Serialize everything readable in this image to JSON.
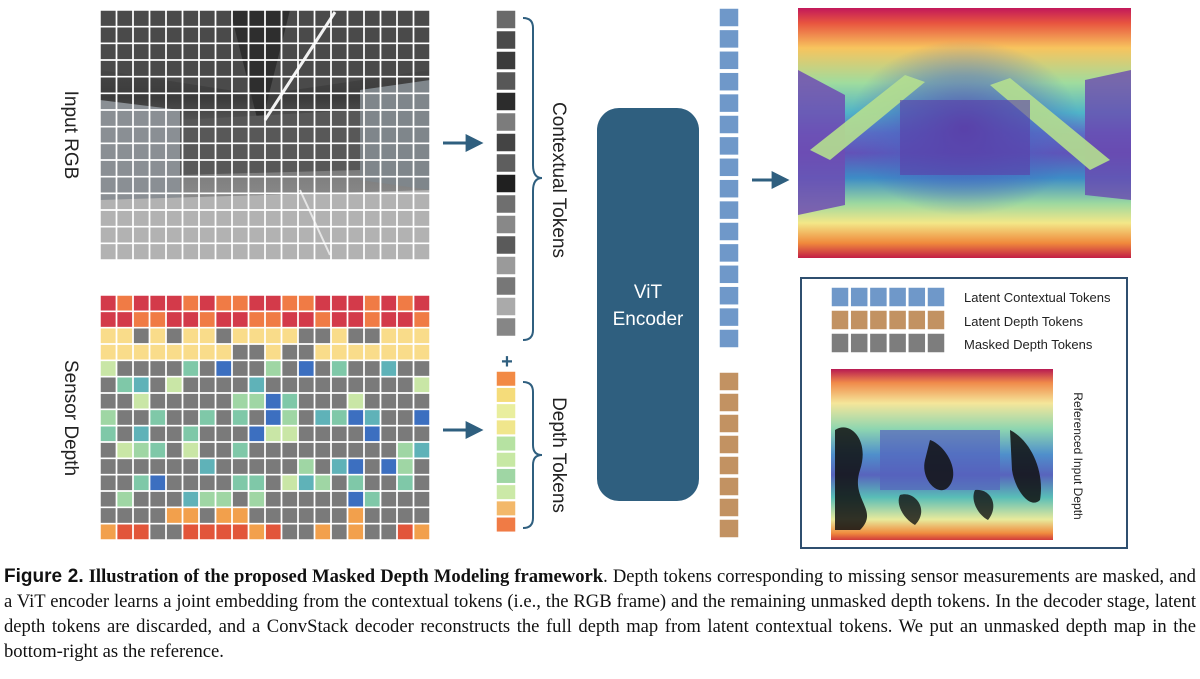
{
  "figure": {
    "input_rgb_label": "Input RGB",
    "sensor_depth_label": "Sensor Depth",
    "contextual_tokens_label": "Contextual Tokens",
    "depth_tokens_label": "Depth Tokens",
    "plus_symbol": "+",
    "encoder_line1": "ViT",
    "encoder_line2": "Encoder",
    "legend": {
      "latent_contextual": "Latent Contextual Tokens",
      "latent_depth": "Latent Depth Tokens",
      "masked_depth": "Masked Depth Tokens"
    },
    "reference_label": "Referenced Input Depth",
    "colors": {
      "contextual_blue": "#6f98c9",
      "depth_tan": "#c29262",
      "masked_gray": "#7d7d7d",
      "encoder": "#2f5f7f",
      "arrow": "#2f5f7f"
    }
  },
  "caption": {
    "figure_number": "Figure 2.",
    "title": "Illustration of the proposed Masked Depth Modeling framework",
    "body": ". Depth tokens corresponding to missing sensor measurements are masked, and a ViT encoder learns a joint embedding from the contextual tokens (i.e., the RGB frame) and the remaining unmasked depth tokens. In the decoder stage, latent depth tokens are discarded, and a ConvStack decoder reconstructs the full depth map from latent contextual tokens. We put an unmasked depth map in the bottom-right as the reference."
  }
}
